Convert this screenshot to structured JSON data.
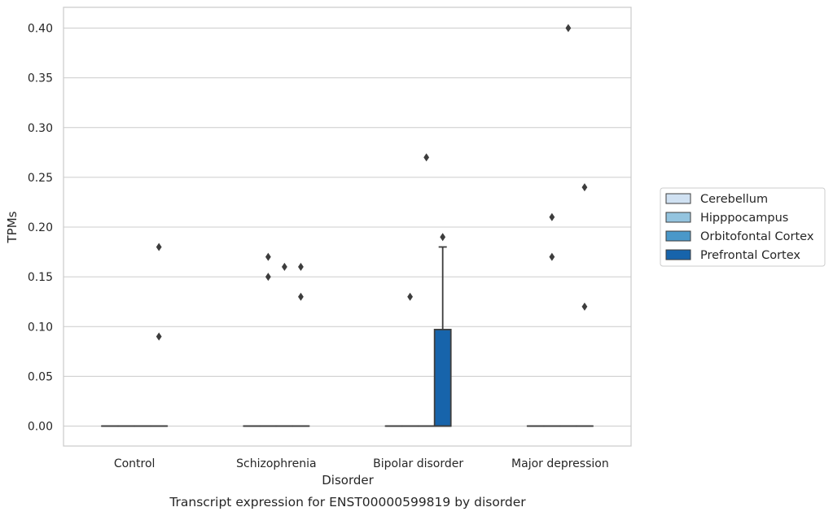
{
  "chart_data": {
    "type": "box",
    "title": "",
    "caption": "Transcript expression for ENST00000599819 by disorder",
    "xlabel": "Disorder",
    "ylabel": "TPMs",
    "ylim": [
      -0.02,
      0.42
    ],
    "yticks": [
      0.0,
      0.05,
      0.1,
      0.15,
      0.2,
      0.25,
      0.3,
      0.35,
      0.4
    ],
    "ytick_labels": [
      "0.00",
      "0.05",
      "0.10",
      "0.15",
      "0.20",
      "0.25",
      "0.30",
      "0.35",
      "0.40"
    ],
    "grid": "horizontal",
    "legend_placement": "right, outside",
    "categories": [
      "Control",
      "Schizophrenia",
      "Bipolar disorder",
      "Major depression"
    ],
    "series": [
      {
        "name": "Cerebellum",
        "color": "#d0e1f2",
        "boxes": [
          {
            "q1": 0,
            "median": 0,
            "q3": 0,
            "whisker_low": 0,
            "whisker_high": 0,
            "outliers": []
          },
          {
            "q1": 0,
            "median": 0,
            "q3": 0,
            "whisker_low": 0,
            "whisker_high": 0,
            "outliers": []
          },
          {
            "q1": 0,
            "median": 0,
            "q3": 0,
            "whisker_low": 0,
            "whisker_high": 0,
            "outliers": []
          },
          {
            "q1": 0,
            "median": 0,
            "q3": 0,
            "whisker_low": 0,
            "whisker_high": 0,
            "outliers": []
          }
        ]
      },
      {
        "name": "Hipppocampus",
        "color": "#94c4df",
        "boxes": [
          {
            "q1": 0,
            "median": 0,
            "q3": 0,
            "whisker_low": 0,
            "whisker_high": 0,
            "outliers": []
          },
          {
            "q1": 0,
            "median": 0,
            "q3": 0,
            "whisker_low": 0,
            "whisker_high": 0,
            "outliers": [
              0.17,
              0.15
            ]
          },
          {
            "q1": 0,
            "median": 0,
            "q3": 0,
            "whisker_low": 0,
            "whisker_high": 0,
            "outliers": [
              0.13
            ]
          },
          {
            "q1": 0,
            "median": 0,
            "q3": 0,
            "whisker_low": 0,
            "whisker_high": 0,
            "outliers": [
              0.21,
              0.17
            ]
          }
        ]
      },
      {
        "name": "Orbitofontal Cortex",
        "color": "#4a98c9",
        "boxes": [
          {
            "q1": 0,
            "median": 0,
            "q3": 0,
            "whisker_low": 0,
            "whisker_high": 0,
            "outliers": []
          },
          {
            "q1": 0,
            "median": 0,
            "q3": 0,
            "whisker_low": 0,
            "whisker_high": 0,
            "outliers": [
              0.16
            ]
          },
          {
            "q1": 0,
            "median": 0,
            "q3": 0,
            "whisker_low": 0,
            "whisker_high": 0,
            "outliers": [
              0.27
            ]
          },
          {
            "q1": 0,
            "median": 0,
            "q3": 0,
            "whisker_low": 0,
            "whisker_high": 0,
            "outliers": [
              0.4
            ]
          }
        ]
      },
      {
        "name": "Prefrontal Cortex",
        "color": "#1764ab",
        "boxes": [
          {
            "q1": 0,
            "median": 0,
            "q3": 0,
            "whisker_low": 0,
            "whisker_high": 0,
            "outliers": [
              0.18,
              0.09
            ]
          },
          {
            "q1": 0,
            "median": 0,
            "q3": 0,
            "whisker_low": 0,
            "whisker_high": 0,
            "outliers": [
              0.16,
              0.13
            ]
          },
          {
            "q1": 0,
            "median": 0,
            "q3": 0.097,
            "whisker_low": 0,
            "whisker_high": 0.18,
            "outliers": [
              0.19
            ]
          },
          {
            "q1": 0,
            "median": 0,
            "q3": 0,
            "whisker_low": 0,
            "whisker_high": 0,
            "outliers": [
              0.24,
              0.12
            ]
          }
        ]
      }
    ]
  }
}
